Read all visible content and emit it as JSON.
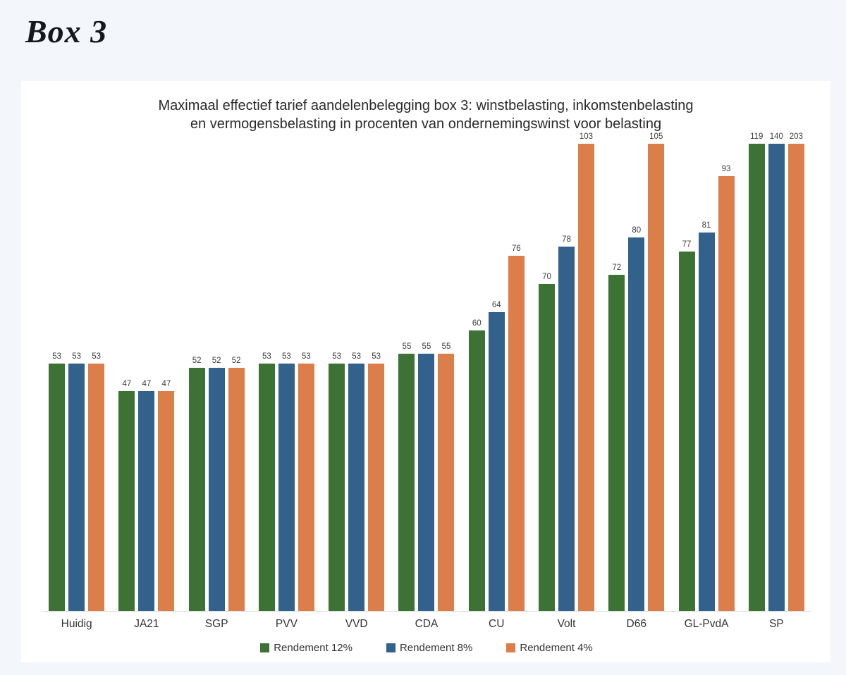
{
  "page": {
    "title": "Box 3",
    "background_color": "#f3f6fa",
    "panel_color": "#ffffff"
  },
  "chart_data": {
    "type": "bar",
    "title_lines": [
      "Maximaal effectief tarief aandelenbelegging box 3: winstbelasting, inkomstenbelasting",
      "en vermogensbelasting in procenten van ondernemingswinst voor belasting"
    ],
    "categories": [
      "Huidig",
      "JA21",
      "SGP",
      "PVV",
      "VVD",
      "CDA",
      "CU",
      "Volt",
      "D66",
      "GL-PvdA",
      "SP"
    ],
    "series": [
      {
        "name": "Rendement 12%",
        "color": "#3c7233",
        "values": [
          53,
          47,
          52,
          53,
          53,
          55,
          60,
          70,
          72,
          77,
          119
        ]
      },
      {
        "name": "Rendement 8%",
        "color": "#32618c",
        "values": [
          53,
          47,
          52,
          53,
          53,
          55,
          64,
          78,
          80,
          81,
          140
        ]
      },
      {
        "name": "Rendement 4%",
        "color": "#dc7e49",
        "values": [
          53,
          47,
          52,
          53,
          53,
          55,
          76,
          103,
          105,
          93,
          203
        ]
      }
    ],
    "ylim": [
      0,
      100
    ],
    "bars_clipped_at_ymax": true,
    "value_labels": true,
    "grid": false,
    "y_axis_visible": false,
    "axis_line_color": "#d9d9d9",
    "legend_position": "bottom"
  }
}
